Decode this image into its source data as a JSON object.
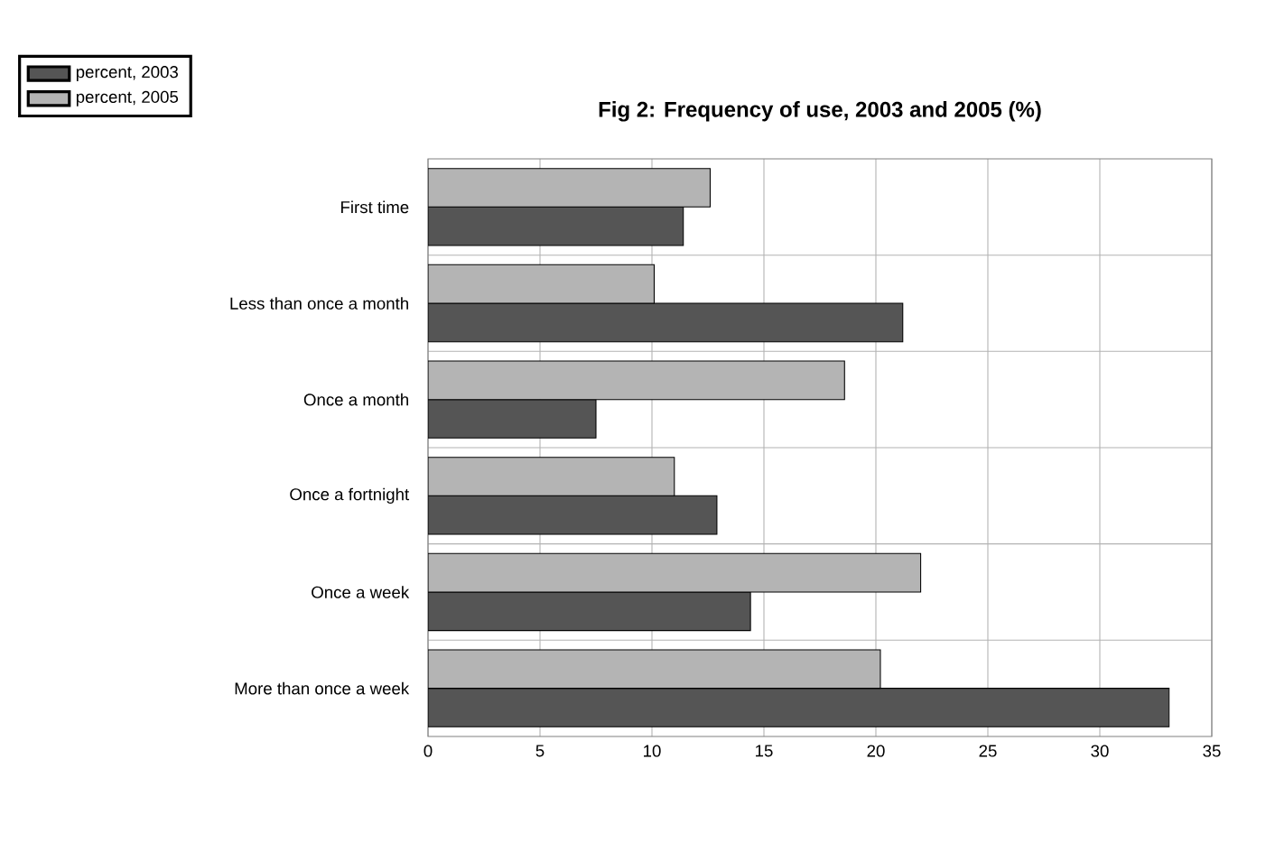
{
  "chart_data": {
    "type": "bar",
    "orientation": "horizontal",
    "title": "Fig 2: Frequency of use, 2003 and 2005 (%)",
    "categories": [
      "First time",
      "Less than once a month",
      "Once a month",
      "Once a fortnight",
      "Once a week",
      "More than once a week"
    ],
    "series": [
      {
        "name": "percent, 2003",
        "color": "#555555",
        "values": [
          11.4,
          21.2,
          7.5,
          12.9,
          14.4,
          33.1
        ]
      },
      {
        "name": "percent, 2005",
        "color": "#b4b4b4",
        "values": [
          12.6,
          10.1,
          18.6,
          11.0,
          22.0,
          20.2
        ]
      }
    ],
    "xlim": [
      0,
      35
    ],
    "xticks": [
      0,
      5,
      10,
      15,
      20,
      25,
      30,
      35
    ],
    "grid": true,
    "legend": "top left"
  }
}
